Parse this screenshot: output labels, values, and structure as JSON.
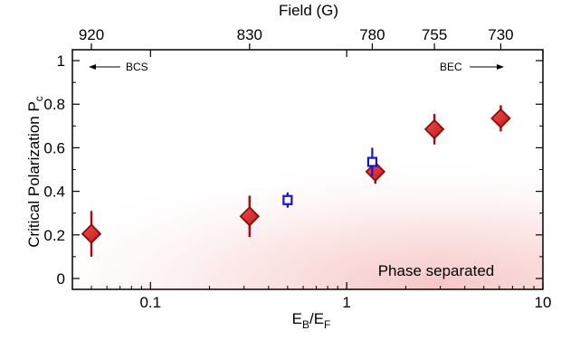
{
  "chart_data": {
    "type": "scatter",
    "x_scale": "log",
    "xlim": [
      0.04,
      10
    ],
    "ylim": [
      -0.05,
      1.05
    ],
    "xlabel": "E",
    "xlabel_sub1": "B",
    "xlabel_sep": "/E",
    "xlabel_sub2": "F",
    "ylabel": "Critical Polarization P",
    "ylabel_sub": "c",
    "top_axis_title": "Field (G)",
    "x_ticks": [
      {
        "value": 0.1,
        "label": "0.1"
      },
      {
        "value": 1,
        "label": "1"
      },
      {
        "value": 10,
        "label": "10"
      }
    ],
    "y_ticks": [
      {
        "value": 0,
        "label": "0"
      },
      {
        "value": 0.2,
        "label": "0.2"
      },
      {
        "value": 0.4,
        "label": "0.4"
      },
      {
        "value": 0.6,
        "label": "0.6"
      },
      {
        "value": 0.8,
        "label": "0.8"
      },
      {
        "value": 1,
        "label": "1"
      }
    ],
    "top_ticks": [
      {
        "x": 0.05,
        "label": "920"
      },
      {
        "x": 0.32,
        "label": "830"
      },
      {
        "x": 1.35,
        "label": "780"
      },
      {
        "x": 2.8,
        "label": "755"
      },
      {
        "x": 6.1,
        "label": "730"
      }
    ],
    "series": [
      {
        "marker": "diamond",
        "color": "#d62020",
        "points": [
          {
            "x": 0.05,
            "y": 0.205,
            "err": 0.105
          },
          {
            "x": 0.32,
            "y": 0.285,
            "err": 0.095
          },
          {
            "x": 1.4,
            "y": 0.49,
            "err": 0.055
          },
          {
            "x": 2.8,
            "y": 0.685,
            "err": 0.07
          },
          {
            "x": 6.1,
            "y": 0.735,
            "err": 0.06
          }
        ]
      },
      {
        "marker": "square",
        "color": "#1414c8",
        "points": [
          {
            "x": 0.5,
            "y": 0.36,
            "err": 0.035
          },
          {
            "x": 1.35,
            "y": 0.535,
            "err": 0.065
          }
        ]
      }
    ],
    "annotations": {
      "bcs": "BCS",
      "bec": "BEC",
      "phase_separated": "Phase separated"
    },
    "grid": false,
    "legend": "none"
  }
}
